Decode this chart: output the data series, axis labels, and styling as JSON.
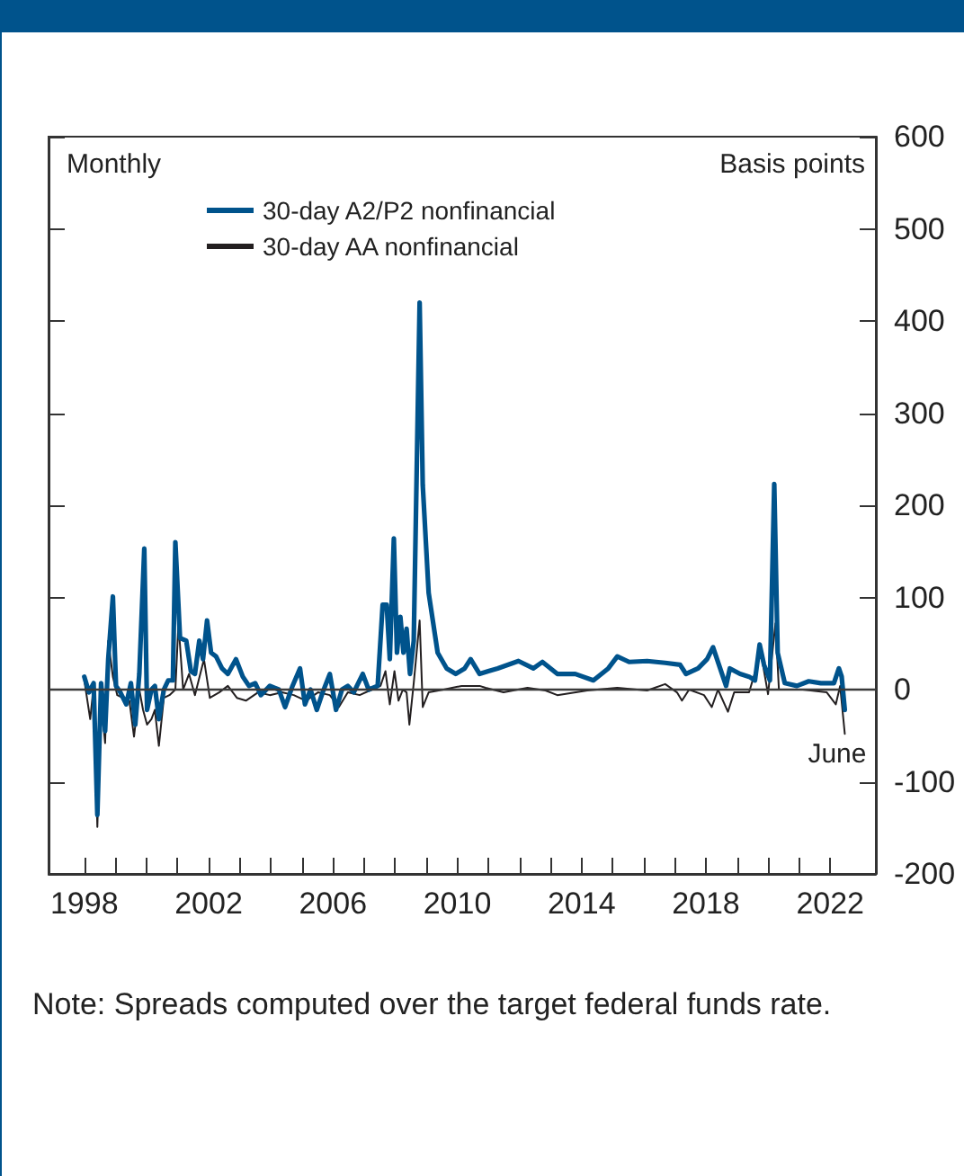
{
  "chart_data": {
    "type": "line",
    "ylabel": "Basis points",
    "annotations": [
      "Monthly",
      {
        "text": "June",
        "x": 2022.47,
        "y": -48
      },
      "Note: Spreads computed over the target federal funds rate."
    ],
    "xlim": [
      1996.85,
      2023.47
    ],
    "xticks": [
      {
        "value": 1998,
        "label": "1998"
      },
      {
        "value": 1999,
        "label": null
      },
      {
        "value": 2000,
        "label": null
      },
      {
        "value": 2001,
        "label": null
      },
      {
        "value": 2002,
        "label": "2002"
      },
      {
        "value": 2003,
        "label": null
      },
      {
        "value": 2004,
        "label": null
      },
      {
        "value": 2005,
        "label": null
      },
      {
        "value": 2006,
        "label": "2006"
      },
      {
        "value": 2007,
        "label": null
      },
      {
        "value": 2008,
        "label": null
      },
      {
        "value": 2009,
        "label": null
      },
      {
        "value": 2010,
        "label": "2010"
      },
      {
        "value": 2011,
        "label": null
      },
      {
        "value": 2012,
        "label": null
      },
      {
        "value": 2013,
        "label": null
      },
      {
        "value": 2014,
        "label": "2014"
      },
      {
        "value": 2015,
        "label": null
      },
      {
        "value": 2016,
        "label": null
      },
      {
        "value": 2017,
        "label": null
      },
      {
        "value": 2018,
        "label": "2018"
      },
      {
        "value": 2019,
        "label": null
      },
      {
        "value": 2020,
        "label": null
      },
      {
        "value": 2021,
        "label": null
      },
      {
        "value": 2022,
        "label": "2022"
      }
    ],
    "ylim": [
      -200,
      600
    ],
    "yticks": [
      -200,
      -100,
      0,
      100,
      200,
      300,
      400,
      500,
      600
    ],
    "grid": false,
    "legend": "top",
    "marker": "none",
    "line_style": "solid",
    "ref_lines": [
      {
        "axis": "y",
        "value": 0,
        "color": "#3a3a3a"
      }
    ],
    "series": [
      {
        "name": "30-day A2/P2 nonfinancial",
        "color": "#00538c",
        "x": [
          1998.0,
          1998.15,
          1998.3,
          1998.42,
          1998.54,
          1998.67,
          1998.77,
          1998.92,
          1999.02,
          1999.16,
          1999.35,
          1999.5,
          1999.64,
          1999.77,
          1999.93,
          2000.02,
          2000.16,
          2000.27,
          2000.4,
          2000.56,
          2000.7,
          2000.85,
          2000.93,
          2001.08,
          2001.28,
          2001.43,
          2001.56,
          2001.7,
          2001.82,
          2001.95,
          2002.08,
          2002.24,
          2002.43,
          2002.62,
          2002.88,
          2003.1,
          2003.3,
          2003.5,
          2003.68,
          2003.97,
          2004.26,
          2004.46,
          2004.7,
          2004.94,
          2005.1,
          2005.28,
          2005.48,
          2005.67,
          2005.9,
          2006.1,
          2006.29,
          2006.48,
          2006.67,
          2006.96,
          2007.15,
          2007.44,
          2007.6,
          2007.73,
          2007.83,
          2007.96,
          2008.06,
          2008.17,
          2008.27,
          2008.37,
          2008.48,
          2008.6,
          2008.79,
          2008.89,
          2009.08,
          2009.37,
          2009.66,
          2009.95,
          2010.24,
          2010.43,
          2010.72,
          2011.0,
          2011.3,
          2011.97,
          2012.45,
          2012.74,
          2013.22,
          2013.8,
          2014.38,
          2014.86,
          2015.15,
          2015.53,
          2016.11,
          2016.69,
          2017.17,
          2017.36,
          2017.75,
          2018.04,
          2018.23,
          2018.42,
          2018.65,
          2018.77,
          2019.1,
          2019.39,
          2019.58,
          2019.73,
          2019.87,
          2020.06,
          2020.2,
          2020.31,
          2020.54,
          2020.93,
          2021.31,
          2021.7,
          2022.12,
          2022.28,
          2022.37,
          2022.47
        ],
        "values": [
          14,
          -3,
          7,
          -136,
          7,
          -45,
          33,
          101,
          4,
          -3,
          -16,
          7,
          -38,
          17,
          153,
          -22,
          0,
          4,
          -32,
          0,
          10,
          10,
          160,
          56,
          53,
          20,
          17,
          53,
          33,
          75,
          40,
          36,
          23,
          17,
          33,
          14,
          4,
          7,
          -6,
          4,
          0,
          -19,
          4,
          23,
          -16,
          0,
          -22,
          -3,
          17,
          -22,
          0,
          4,
          -3,
          17,
          0,
          4,
          92,
          92,
          33,
          164,
          40,
          79,
          40,
          66,
          17,
          53,
          420,
          222,
          105,
          40,
          23,
          17,
          23,
          33,
          17,
          20,
          23,
          31,
          23,
          30,
          17,
          17,
          10,
          23,
          36,
          30,
          31,
          29,
          27,
          17,
          23,
          33,
          46,
          27,
          4,
          23,
          17,
          14,
          10,
          49,
          27,
          10,
          223,
          40,
          7,
          4,
          9,
          7,
          7,
          23,
          14,
          -22
        ]
      },
      {
        "name": "30-day AA nonfinancial",
        "color": "#231f20",
        "x": [
          1998.0,
          1998.19,
          1998.3,
          1998.42,
          1998.54,
          1998.67,
          1998.77,
          1998.92,
          1999.06,
          1999.25,
          1999.45,
          1999.6,
          1999.77,
          1999.89,
          2000.02,
          2000.16,
          2000.27,
          2000.4,
          2000.56,
          2000.74,
          2000.93,
          2001.03,
          2001.18,
          2001.37,
          2001.56,
          2001.85,
          2002.04,
          2002.34,
          2002.62,
          2002.91,
          2003.2,
          2003.59,
          2003.97,
          2004.36,
          2004.74,
          2005.13,
          2005.52,
          2005.9,
          2006.19,
          2006.48,
          2006.86,
          2007.25,
          2007.53,
          2007.69,
          2007.83,
          2007.98,
          2008.11,
          2008.25,
          2008.37,
          2008.46,
          2008.6,
          2008.79,
          2008.89,
          2009.08,
          2009.56,
          2010.14,
          2010.72,
          2010.91,
          2011.49,
          2012.26,
          2012.84,
          2013.22,
          2014.18,
          2015.15,
          2016.11,
          2016.69,
          2017.07,
          2017.23,
          2017.46,
          2017.94,
          2018.19,
          2018.39,
          2018.71,
          2018.91,
          2019.39,
          2019.77,
          2020.0,
          2020.24,
          2020.35,
          2021.12,
          2021.89,
          2022.18,
          2022.32,
          2022.47
        ],
        "values": [
          10,
          -32,
          4,
          -149,
          -12,
          -58,
          53,
          14,
          -6,
          -9,
          -12,
          -51,
          0,
          -22,
          -38,
          -32,
          -22,
          -61,
          -9,
          -6,
          0,
          72,
          0,
          17,
          -6,
          33,
          -9,
          -3,
          4,
          -9,
          -12,
          -3,
          -6,
          -3,
          -6,
          -12,
          -3,
          -6,
          -19,
          -3,
          -6,
          0,
          4,
          20,
          -16,
          20,
          -12,
          0,
          -3,
          -38,
          7,
          75,
          -19,
          -3,
          0,
          4,
          4,
          2,
          -3,
          2,
          -1,
          -6,
          -1,
          2,
          -1,
          6,
          -3,
          -12,
          0,
          -6,
          -19,
          0,
          -24,
          -3,
          -3,
          40,
          -5,
          72,
          0,
          0,
          -3,
          -16,
          4,
          -48
        ]
      }
    ]
  }
}
